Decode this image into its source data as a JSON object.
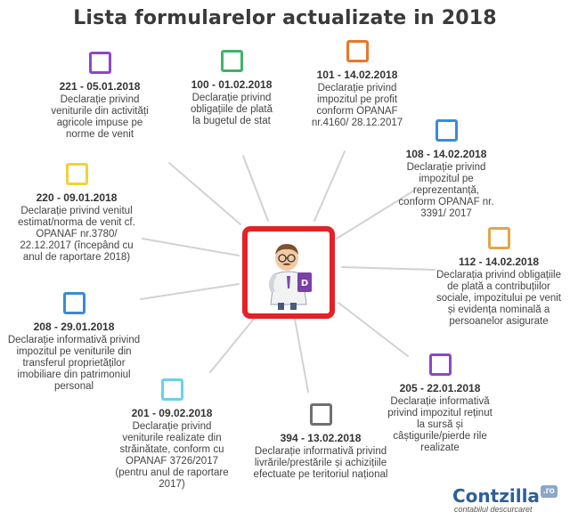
{
  "title": "Lista formularelor actualizate in 2018",
  "forms": [
    {
      "code": "221 - 05.01.2018",
      "description": "Declarație privind veniturile din activități agricole impuse pe norme de venit",
      "color": "#8c47c7"
    },
    {
      "code": "100 - 01.02.2018",
      "description": "Declarație privind obligațiile de plată la bugetul de stat",
      "color": "#3fb36b"
    },
    {
      "code": "101 - 14.02.2018",
      "description": "Declarație privind impozitul pe profit conform OPANAF nr.4160/ 28.12.2017",
      "color": "#e8762d"
    },
    {
      "code": "108 - 14.02.2018",
      "description": "Declarație privind impozitul pe reprezentanță, conform OPANAF nr. 3391/ 2017",
      "color": "#3a8bd6"
    },
    {
      "code": "112 - 14.02.2018",
      "description": "Declarația privind obligațiile de plată a contribuțiilor sociale, impozitului pe venit și evidența nominală a persoanelor asigurate",
      "color": "#e3a54a"
    },
    {
      "code": "205 - 22.01.2018",
      "description": "Declarație informativă privind impozitul reținut la sursă și câștigurile/pierde rile realizate",
      "color": "#8c47c7"
    },
    {
      "code": "394 - 13.02.2018",
      "description": "Declarație informativă privind livrările/prestările și achizițiile efectuate pe teritoriul național",
      "color": "#707070"
    },
    {
      "code": "201 - 09.02.2018",
      "description": "Declarație privind veniturile realizate din străinătate, conform cu OPANAF 3726/2017 (pentru anul de raportare 2017)",
      "color": "#6cd0e8"
    },
    {
      "code": "208 - 29.01.2018",
      "description": "Declarație informativă privind impozitul pe veniturile din transferul proprietăților imobiliare din patrimoniul personal",
      "color": "#3a8bd6"
    },
    {
      "code": "220 - 09.01.2018",
      "description": "Declarație privind venitul estimat/norma de venit cf. OPANAF nr.3780/ 22.12.2017 (începând cu anul de raportare 2018)",
      "color": "#f2d13a"
    }
  ],
  "center": {
    "icon": "accountant-mascot-icon",
    "border_color": "#e32227"
  },
  "brand": {
    "name": "Contzilla",
    "tld": ".ro",
    "tagline": "contabilul descurcaret"
  }
}
